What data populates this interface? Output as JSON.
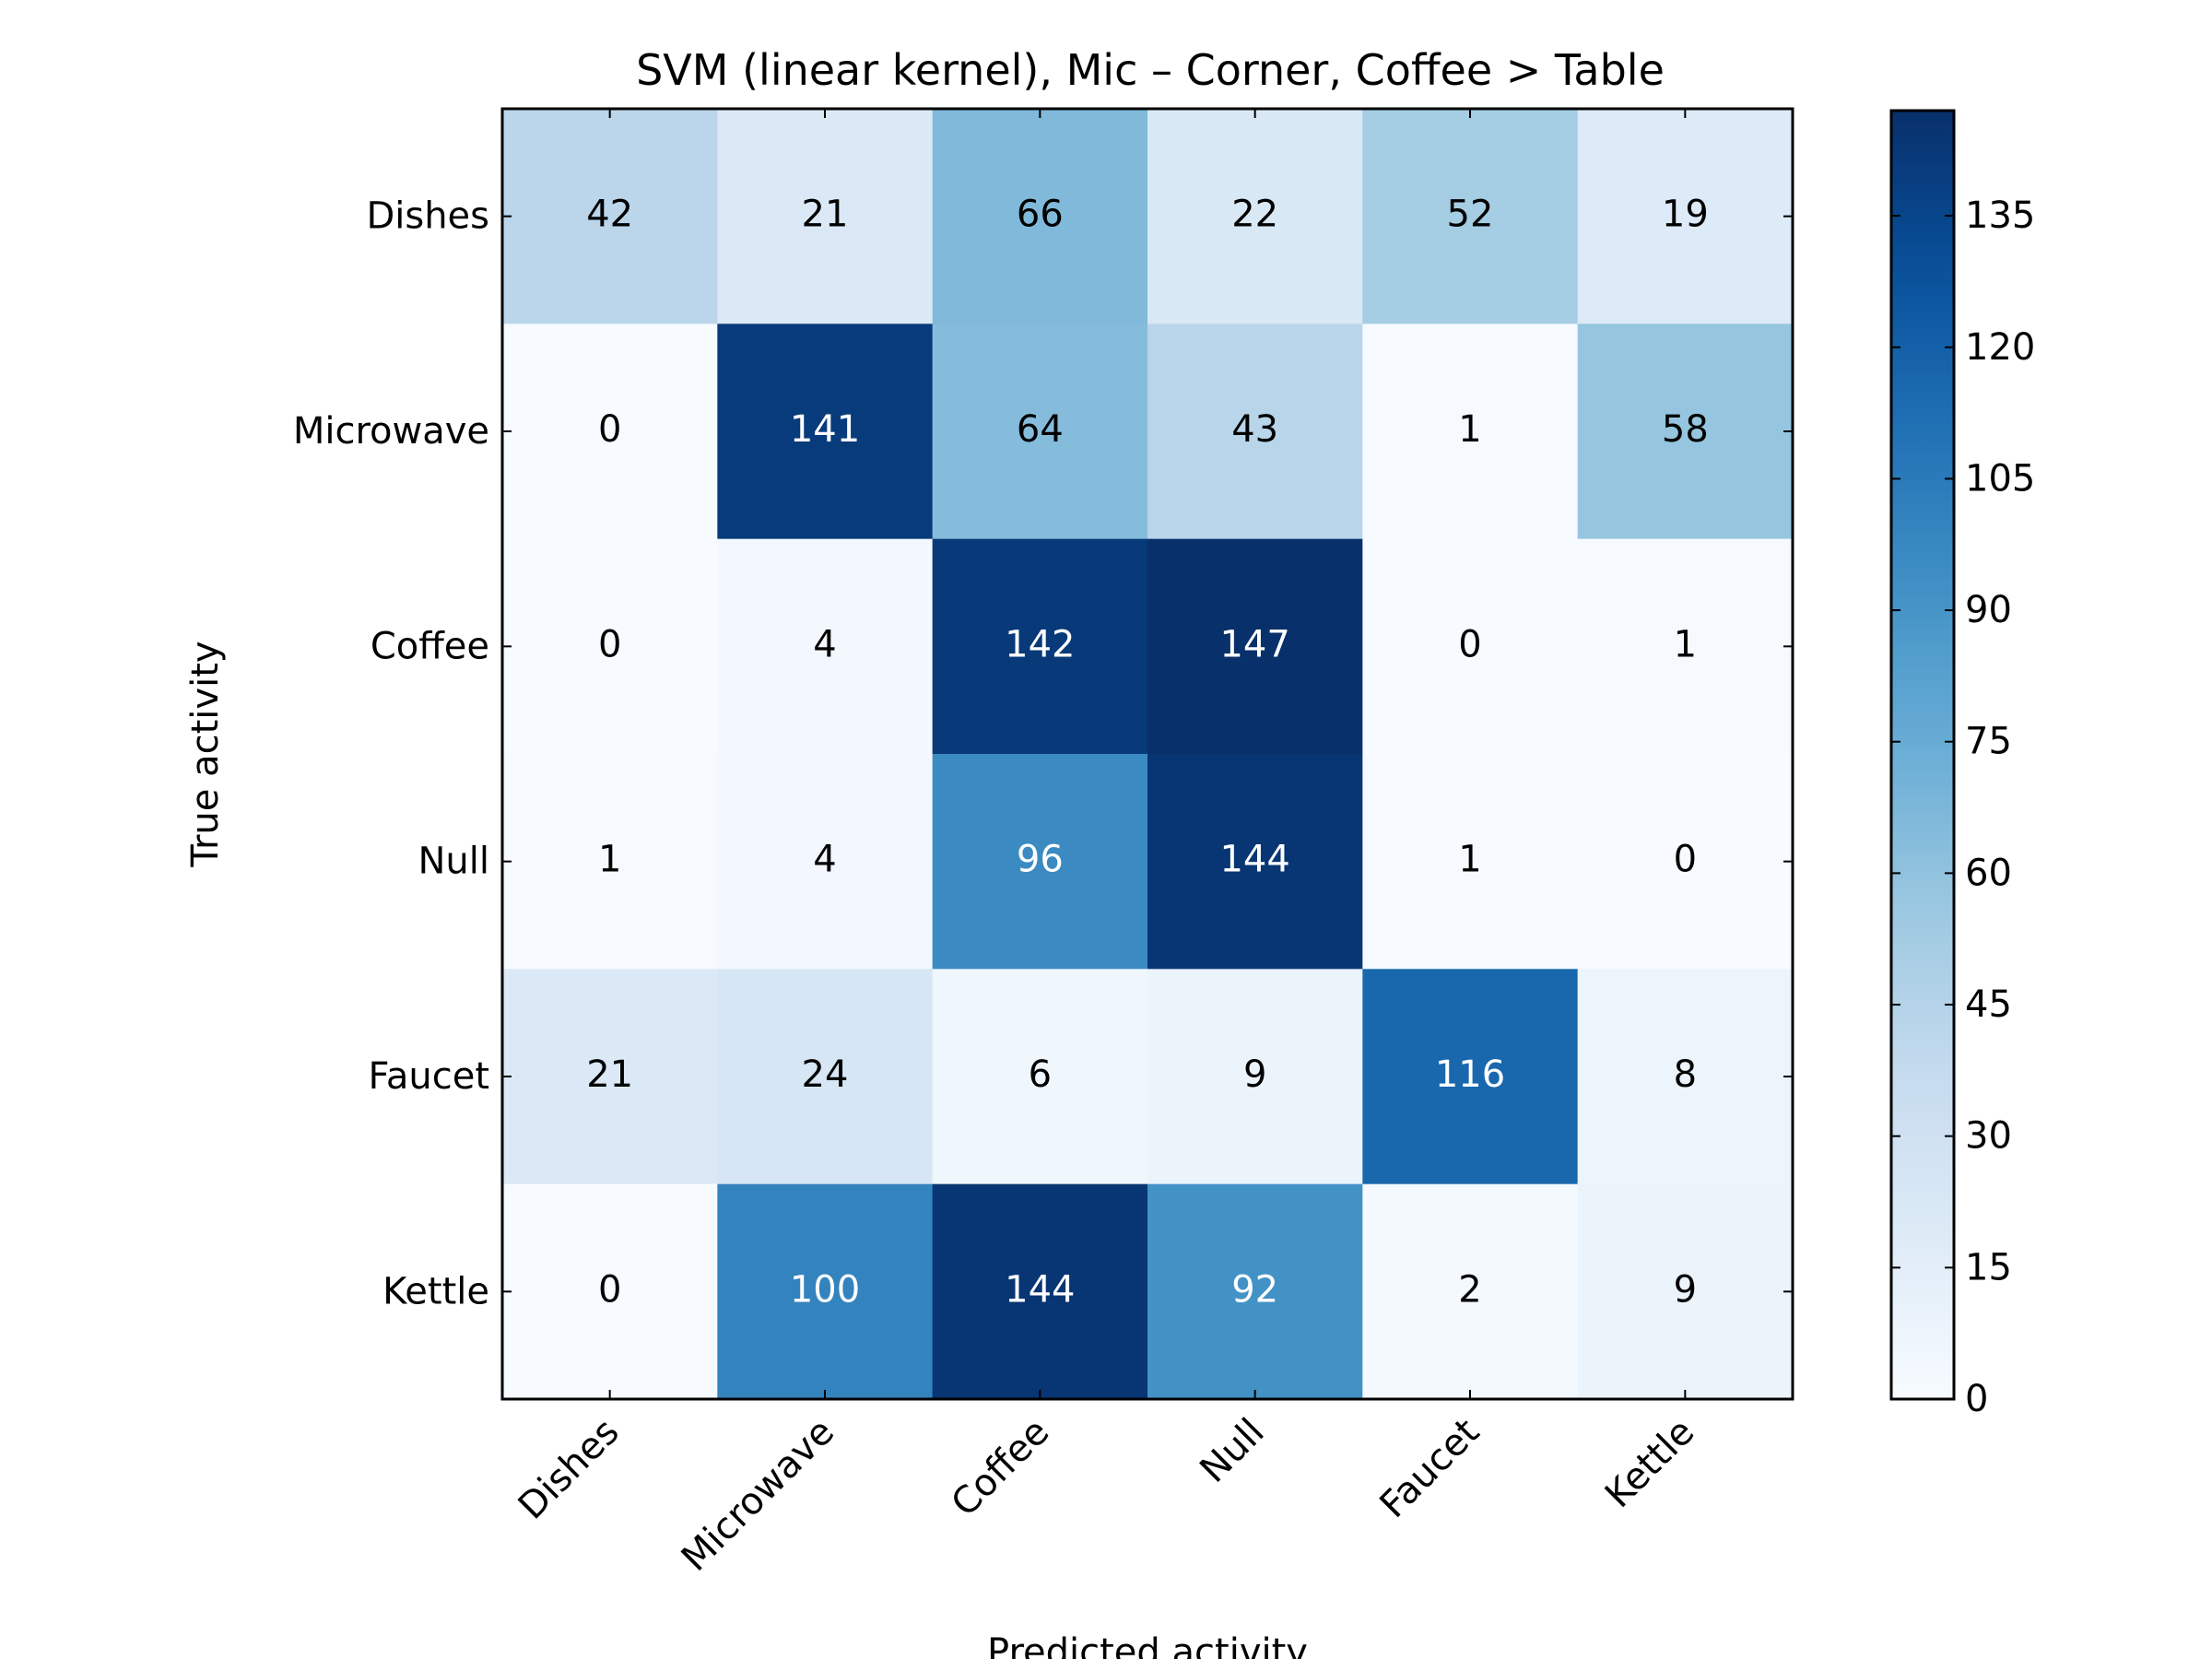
{
  "chart_data": {
    "type": "heatmap",
    "title": "SVM (linear kernel), Mic – Corner, Coffee > Table",
    "xlabel": "Predicted activity",
    "ylabel": "True activity",
    "x_categories": [
      "Dishes",
      "Microwave",
      "Coffee",
      "Null",
      "Faucet",
      "Kettle"
    ],
    "y_categories": [
      "Dishes",
      "Microwave",
      "Coffee",
      "Null",
      "Faucet",
      "Kettle"
    ],
    "values": [
      [
        42,
        21,
        66,
        22,
        52,
        19
      ],
      [
        0,
        141,
        64,
        43,
        1,
        58
      ],
      [
        0,
        4,
        142,
        147,
        0,
        1
      ],
      [
        1,
        4,
        96,
        144,
        1,
        0
      ],
      [
        21,
        24,
        6,
        9,
        116,
        8
      ],
      [
        0,
        100,
        144,
        92,
        2,
        9
      ]
    ],
    "colormap": "Blues",
    "colorbar": {
      "range": [
        0,
        147
      ],
      "ticks": [
        0,
        15,
        30,
        45,
        60,
        75,
        90,
        105,
        120,
        135
      ]
    },
    "colors": {
      "text_dark": "#000000",
      "text_light": "#ffffff",
      "axis": "#000000"
    }
  }
}
